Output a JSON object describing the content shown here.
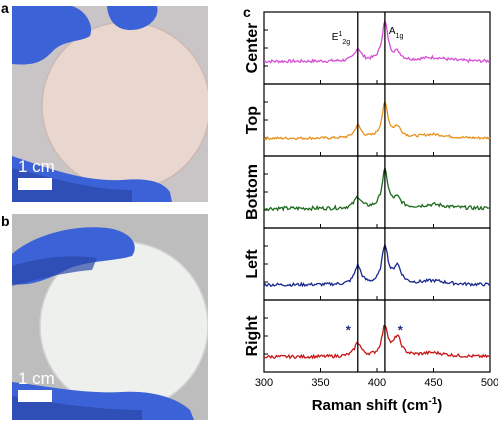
{
  "figure": {
    "panel_a": {
      "letter": "a",
      "scale_label": "1 cm"
    },
    "panel_b": {
      "letter": "b",
      "scale_label": "1 cm"
    },
    "panel_c": {
      "letter": "c"
    }
  },
  "colors": {
    "glove": "#3b62d6",
    "glove_shadow": "#2b47a8",
    "wafer_a": "#e9d6cf",
    "wafer_b": "#eef0ee",
    "bg_a": "#c9c4c6",
    "bg_b": "#bdbdbd"
  },
  "chart_data": {
    "type": "line",
    "xlabel": "Raman shift (cm",
    "xlabel_sup": "-1",
    "xlabel_close": ")",
    "xlim": [
      300,
      500
    ],
    "xticks": [
      300,
      350,
      400,
      450,
      500
    ],
    "reference_lines": [
      383,
      407
    ],
    "peak_labels": [
      {
        "base": "E",
        "sup": "1",
        "sub": "2g",
        "x": 383
      },
      {
        "base": "A",
        "sub": "1g",
        "x": 407
      }
    ],
    "series": [
      {
        "name": "Center",
        "color": "#d64fd6",
        "baseline": 0.3,
        "e": 0.2,
        "a": 0.62,
        "s": 0.12,
        "noise": 0.025,
        "stars": []
      },
      {
        "name": "Top",
        "color": "#e8921e",
        "baseline": 0.22,
        "e": 0.2,
        "a": 0.55,
        "s": 0.16,
        "noise": 0.02,
        "stars": []
      },
      {
        "name": "Bottom",
        "color": "#1f6b1f",
        "baseline": 0.25,
        "e": 0.18,
        "a": 0.6,
        "s": 0.14,
        "noise": 0.03,
        "stars": []
      },
      {
        "name": "Left",
        "color": "#1b2a8f",
        "baseline": 0.18,
        "e": 0.3,
        "a": 0.62,
        "s": 0.28,
        "noise": 0.025,
        "stars": []
      },
      {
        "name": "Right",
        "color": "#c81818",
        "baseline": 0.18,
        "e": 0.22,
        "a": 0.48,
        "s": 0.3,
        "noise": 0.025,
        "stars": [
          375,
          421
        ]
      }
    ]
  }
}
